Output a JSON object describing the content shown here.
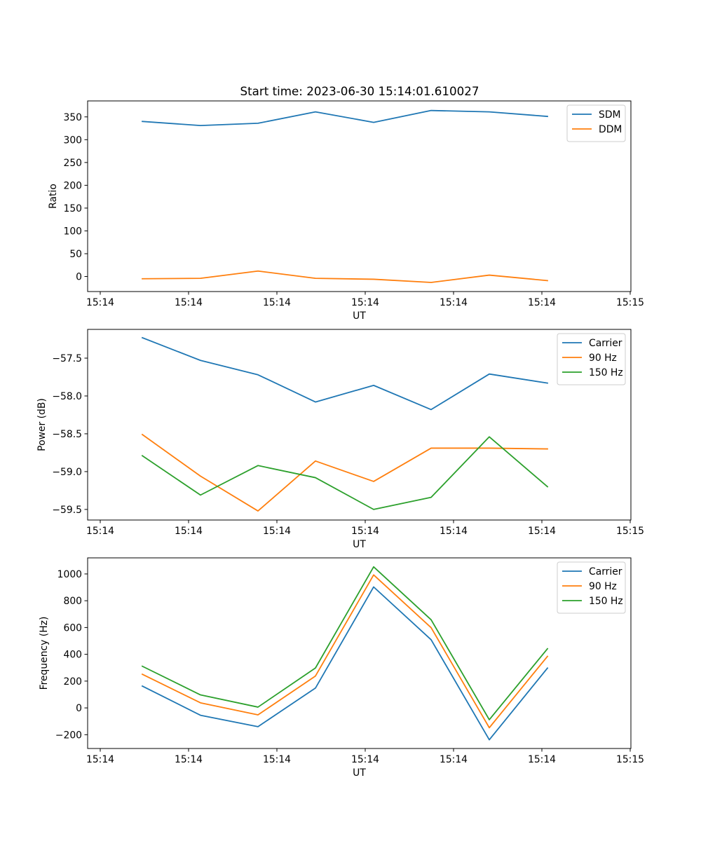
{
  "title": "Start time: 2023-06-30 15:14:01.610027",
  "chart_data": [
    {
      "type": "line",
      "title": "Start time: 2023-06-30 15:14:01.610027",
      "xlabel": "UT",
      "ylabel": "Ratio",
      "x_tick_labels": [
        "15:14",
        "15:14",
        "15:14",
        "15:14",
        "15:14",
        "15:14",
        "15:15"
      ],
      "y_ticks": [
        0,
        50,
        100,
        150,
        200,
        250,
        300,
        350
      ],
      "ylim": [
        -33,
        385
      ],
      "legend_location": "upper right",
      "colors": [
        "#1f77b4",
        "#ff7f0e"
      ],
      "series": [
        {
          "name": "SDM",
          "values": [
            340,
            331,
            336,
            361,
            338,
            364,
            361,
            351
          ]
        },
        {
          "name": "DDM",
          "values": [
            -5,
            -4,
            12,
            -4,
            -6,
            -13,
            3,
            -9
          ]
        }
      ]
    },
    {
      "type": "line",
      "title": "",
      "xlabel": "UT",
      "ylabel": "Power (dB)",
      "x_tick_labels": [
        "15:14",
        "15:14",
        "15:14",
        "15:14",
        "15:14",
        "15:14",
        "15:15"
      ],
      "y_ticks": [
        -57.5,
        -58.0,
        -58.5,
        -59.0,
        -59.5
      ],
      "y_tick_labels": [
        "−57.5",
        "−58.0",
        "−58.5",
        "−59.0",
        "−59.5"
      ],
      "ylim": [
        -59.64,
        -57.12
      ],
      "legend_location": "upper right",
      "colors": [
        "#1f77b4",
        "#ff7f0e",
        "#2ca02c"
      ],
      "series": [
        {
          "name": "Carrier",
          "values": [
            -57.23,
            -57.53,
            -57.72,
            -58.08,
            -57.86,
            -58.18,
            -57.71,
            -57.83
          ]
        },
        {
          "name": "90 Hz",
          "values": [
            -58.51,
            -59.06,
            -59.52,
            -58.86,
            -59.13,
            -58.69,
            -58.69,
            -58.7
          ]
        },
        {
          "name": "150 Hz",
          "values": [
            -58.79,
            -59.31,
            -58.92,
            -59.08,
            -59.5,
            -59.34,
            -58.54,
            -59.2
          ]
        }
      ]
    },
    {
      "type": "line",
      "title": "",
      "xlabel": "UT",
      "ylabel": "Frequency (Hz)",
      "x_tick_labels": [
        "15:14",
        "15:14",
        "15:14",
        "15:14",
        "15:14",
        "15:14",
        "15:15"
      ],
      "y_ticks": [
        -200,
        0,
        200,
        400,
        600,
        800,
        1000
      ],
      "y_tick_labels": [
        "−200",
        "0",
        "200",
        "400",
        "600",
        "800",
        "1000"
      ],
      "ylim": [
        -303,
        1120
      ],
      "legend_location": "upper right",
      "colors": [
        "#1f77b4",
        "#ff7f0e",
        "#2ca02c"
      ],
      "series": [
        {
          "name": "Carrier",
          "values": [
            163,
            -55,
            -140,
            148,
            903,
            509,
            -238,
            297
          ]
        },
        {
          "name": "90 Hz",
          "values": [
            251,
            38,
            -52,
            238,
            993,
            599,
            -148,
            385
          ]
        },
        {
          "name": "150 Hz",
          "values": [
            311,
            97,
            6,
            298,
            1053,
            658,
            -88,
            442
          ]
        }
      ]
    }
  ]
}
